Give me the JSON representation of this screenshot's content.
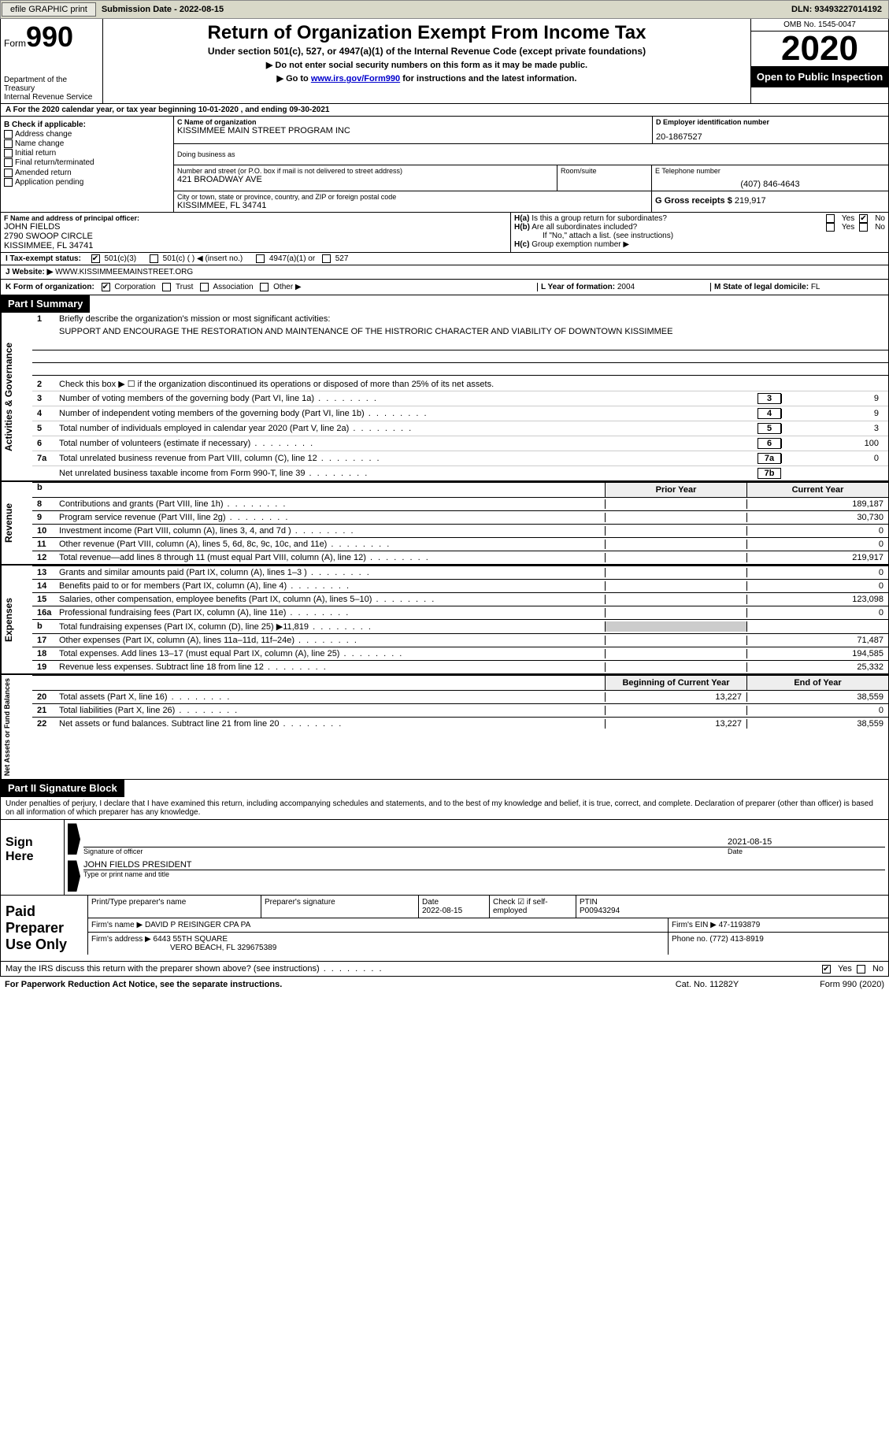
{
  "toolbar": {
    "efile": "efile GRAPHIC print",
    "submission_label": "Submission Date - 2022-08-15",
    "dln": "DLN: 93493227014192"
  },
  "header": {
    "form_label": "Form",
    "form_number": "990",
    "title": "Return of Organization Exempt From Income Tax",
    "subtitle": "Under section 501(c), 527, or 4947(a)(1) of the Internal Revenue Code (except private foundations)",
    "note1": "▶ Do not enter social security numbers on this form as it may be made public.",
    "note2_pre": "▶ Go to ",
    "note2_link": "www.irs.gov/Form990",
    "note2_post": " for instructions and the latest information.",
    "dept": "Department of the Treasury\nInternal Revenue Service",
    "omb": "OMB No. 1545-0047",
    "year": "2020",
    "open_public": "Open to Public Inspection"
  },
  "row_a": "A For the 2020 calendar year, or tax year beginning 10-01-2020    , and ending 09-30-2021",
  "section_b": {
    "header": "B Check if applicable:",
    "items": [
      "Address change",
      "Name change",
      "Initial return",
      "Final return/terminated",
      "Amended return",
      "Application pending"
    ]
  },
  "section_c": {
    "label": "C Name of organization",
    "value": "KISSIMMEE MAIN STREET PROGRAM INC",
    "dba_label": "Doing business as",
    "addr_label": "Number and street (or P.O. box if mail is not delivered to street address)",
    "addr_value": "421 BROADWAY AVE",
    "room_label": "Room/suite",
    "city_label": "City or town, state or province, country, and ZIP or foreign postal code",
    "city_value": "KISSIMMEE, FL  34741"
  },
  "section_d": {
    "label": "D Employer identification number",
    "value": "20-1867527"
  },
  "section_e": {
    "label": "E Telephone number",
    "value": "(407) 846-4643"
  },
  "section_g": {
    "label": "G Gross receipts $",
    "value": "219,917"
  },
  "section_f": {
    "label": "F Name and address of principal officer:",
    "name": "JOHN FIELDS",
    "addr1": "2790 SWOOP CIRCLE",
    "addr2": "KISSIMMEE, FL  34741"
  },
  "section_h": {
    "ha": "Is this a group return for subordinates?",
    "hb": "Are all subordinates included?",
    "hb_note": "If \"No,\" attach a list. (see instructions)",
    "hc": "Group exemption number ▶"
  },
  "section_i": {
    "label": "I   Tax-exempt status:",
    "opts": [
      "501(c)(3)",
      "501(c) (  ) ◀ (insert no.)",
      "4947(a)(1) or",
      "527"
    ]
  },
  "section_j": {
    "label": "J   Website: ▶",
    "value": "WWW.KISSIMMEEMAINSTREET.ORG"
  },
  "section_k": {
    "label": "K Form of organization:",
    "opts": [
      "Corporation",
      "Trust",
      "Association",
      "Other ▶"
    ],
    "l_label": "L Year of formation:",
    "l_value": "2004",
    "m_label": "M State of legal domicile:",
    "m_value": "FL"
  },
  "part1": {
    "title": "Part I    Summary",
    "section_labels": [
      "Activities & Governance",
      "Revenue",
      "Expenses",
      "Net Assets or Fund Balances"
    ],
    "line1": "Briefly describe the organization's mission or most significant activities:",
    "mission": "SUPPORT AND ENCOURAGE THE RESTORATION AND MAINTENANCE OF THE HISTRORIC CHARACTER AND VIABILITY OF DOWNTOWN KISSIMMEE",
    "line2": "Check this box ▶ ☐  if the organization discontinued its operations or disposed of more than 25% of its net assets.",
    "governance_lines": [
      {
        "n": "3",
        "t": "Number of voting members of the governing body (Part VI, line 1a)",
        "box": "3",
        "v": "9"
      },
      {
        "n": "4",
        "t": "Number of independent voting members of the governing body (Part VI, line 1b)",
        "box": "4",
        "v": "9"
      },
      {
        "n": "5",
        "t": "Total number of individuals employed in calendar year 2020 (Part V, line 2a)",
        "box": "5",
        "v": "3"
      },
      {
        "n": "6",
        "t": "Total number of volunteers (estimate if necessary)",
        "box": "6",
        "v": "100"
      },
      {
        "n": "7a",
        "t": "Total unrelated business revenue from Part VIII, column (C), line 12",
        "box": "7a",
        "v": "0"
      },
      {
        "n": "",
        "t": "Net unrelated business taxable income from Form 990-T, line 39",
        "box": "7b",
        "v": ""
      }
    ],
    "col_headers": {
      "prior": "Prior Year",
      "current": "Current Year"
    },
    "revenue_lines": [
      {
        "n": "8",
        "t": "Contributions and grants (Part VIII, line 1h)",
        "c1": "",
        "c2": "189,187"
      },
      {
        "n": "9",
        "t": "Program service revenue (Part VIII, line 2g)",
        "c1": "",
        "c2": "30,730"
      },
      {
        "n": "10",
        "t": "Investment income (Part VIII, column (A), lines 3, 4, and 7d )",
        "c1": "",
        "c2": "0"
      },
      {
        "n": "11",
        "t": "Other revenue (Part VIII, column (A), lines 5, 6d, 8c, 9c, 10c, and 11e)",
        "c1": "",
        "c2": "0"
      },
      {
        "n": "12",
        "t": "Total revenue—add lines 8 through 11 (must equal Part VIII, column (A), line 12)",
        "c1": "",
        "c2": "219,917"
      }
    ],
    "expense_lines": [
      {
        "n": "13",
        "t": "Grants and similar amounts paid (Part IX, column (A), lines 1–3 )",
        "c1": "",
        "c2": "0"
      },
      {
        "n": "14",
        "t": "Benefits paid to or for members (Part IX, column (A), line 4)",
        "c1": "",
        "c2": "0"
      },
      {
        "n": "15",
        "t": "Salaries, other compensation, employee benefits (Part IX, column (A), lines 5–10)",
        "c1": "",
        "c2": "123,098"
      },
      {
        "n": "16a",
        "t": "Professional fundraising fees (Part IX, column (A), line 11e)",
        "c1": "",
        "c2": "0"
      },
      {
        "n": "b",
        "t": "Total fundraising expenses (Part IX, column (D), line 25) ▶11,819",
        "c1": "SHADE",
        "c2": "SHADE"
      },
      {
        "n": "17",
        "t": "Other expenses (Part IX, column (A), lines 11a–11d, 11f–24e)",
        "c1": "",
        "c2": "71,487"
      },
      {
        "n": "18",
        "t": "Total expenses. Add lines 13–17 (must equal Part IX, column (A), line 25)",
        "c1": "",
        "c2": "194,585"
      },
      {
        "n": "19",
        "t": "Revenue less expenses. Subtract line 18 from line 12",
        "c1": "",
        "c2": "25,332"
      }
    ],
    "net_headers": {
      "begin": "Beginning of Current Year",
      "end": "End of Year"
    },
    "net_lines": [
      {
        "n": "20",
        "t": "Total assets (Part X, line 16)",
        "c1": "13,227",
        "c2": "38,559"
      },
      {
        "n": "21",
        "t": "Total liabilities (Part X, line 26)",
        "c1": "",
        "c2": "0"
      },
      {
        "n": "22",
        "t": "Net assets or fund balances. Subtract line 21 from line 20",
        "c1": "13,227",
        "c2": "38,559"
      }
    ]
  },
  "part2": {
    "title": "Part II    Signature Block",
    "penalties": "Under penalties of perjury, I declare that I have examined this return, including accompanying schedules and statements, and to the best of my knowledge and belief, it is true, correct, and complete. Declaration of preparer (other than officer) is based on all information of which preparer has any knowledge.",
    "sign_here": "Sign Here",
    "sig_officer_lbl": "Signature of officer",
    "date_lbl": "Date",
    "sig_date": "2021-08-15",
    "officer_name": "JOHN FIELDS  PRESIDENT",
    "officer_lbl": "Type or print name and title",
    "paid_prep": "Paid Preparer Use Only",
    "prep_hdrs": [
      "Print/Type preparer's name",
      "Preparer's signature",
      "Date",
      "",
      "PTIN"
    ],
    "prep_date": "2022-08-15",
    "self_emp": "Check ☑ if self-employed",
    "ptin": "P00943294",
    "firm_name_lbl": "Firm's name   ▶",
    "firm_name": "DAVID P REISINGER CPA PA",
    "firm_ein_lbl": "Firm's EIN ▶",
    "firm_ein": "47-1193879",
    "firm_addr_lbl": "Firm's address ▶",
    "firm_addr1": "6443 55TH SQUARE",
    "firm_addr2": "VERO BEACH, FL  329675389",
    "phone_lbl": "Phone no.",
    "phone": "(772) 413-8919",
    "discuss": "May the IRS discuss this return with the preparer shown above? (see instructions)",
    "yes": "Yes",
    "no": "No"
  },
  "footer": {
    "left": "For Paperwork Reduction Act Notice, see the separate instructions.",
    "mid": "Cat. No. 11282Y",
    "right": "Form 990 (2020)"
  }
}
